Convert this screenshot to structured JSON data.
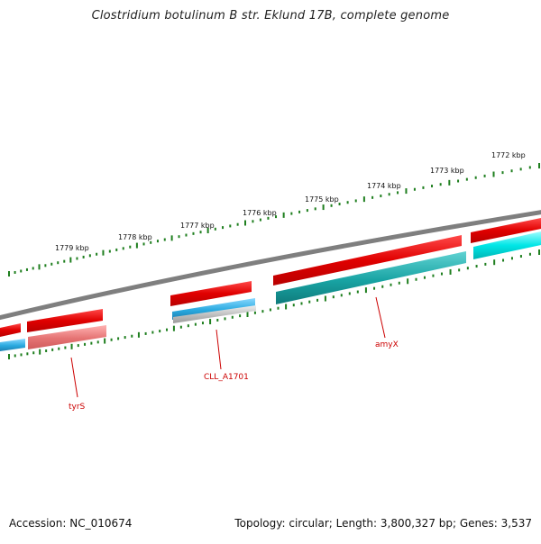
{
  "title": "Clostridium botulinum B str. Eklund 17B, complete genome",
  "accession_label": "Accession: NC_010674",
  "summary_label": "Topology: circular; Length: 3,800,327 bp; Genes: 3,537",
  "colors": {
    "backbone": "#7f7f7f",
    "ticks": "#1f7f1f",
    "cds_forward": "#e60000",
    "cds_reverse": "#00e6e6",
    "gene_dark": "#18a3a3",
    "pink": "#e57373",
    "blue": "#2aaae0",
    "gray": "#bdbdbd",
    "label_red": "#cc0000"
  },
  "ticks": [
    {
      "text": "1772 kbp"
    },
    {
      "text": "1773 kbp"
    },
    {
      "text": "1774 kbp"
    },
    {
      "text": "1775 kbp"
    },
    {
      "text": "1776 kbp"
    },
    {
      "text": "1777 kbp"
    },
    {
      "text": "1778 kbp"
    },
    {
      "text": "1779 kbp"
    }
  ],
  "genes": [
    {
      "name": "tyrS"
    },
    {
      "name": "CLL_A1701"
    },
    {
      "name": "amyX"
    }
  ]
}
